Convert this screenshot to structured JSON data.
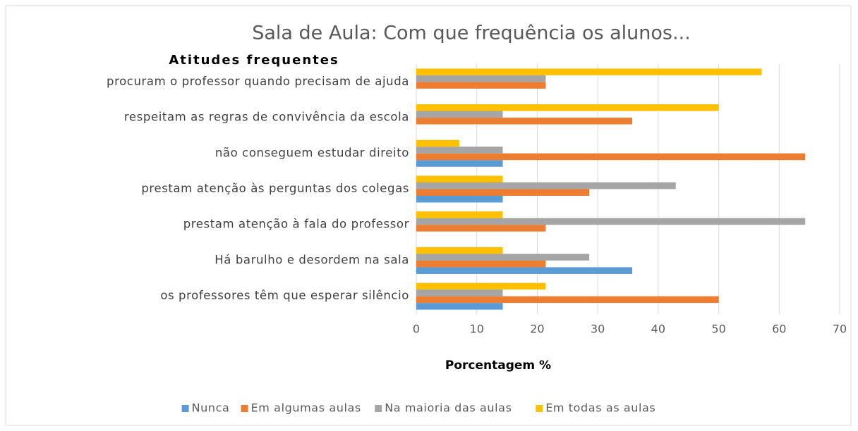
{
  "chart_data": {
    "type": "bar",
    "orientation": "horizontal",
    "title": "Sala de Aula: Com que frequência os alunos...",
    "y_label": "Atitudes frequentes",
    "x_label": "Porcentagem %",
    "categories": [
      "procuram o professor quando precisam de ajuda",
      "respeitam as regras de convivência da escola",
      "não conseguem estudar direito",
      "prestam atenção às perguntas dos colegas",
      "prestam atenção à fala do professor",
      "Há barulho e desordem na sala",
      "os professores têm que esperar silêncio"
    ],
    "series": [
      {
        "name": "Nunca",
        "color": "#5b9bd5",
        "values": [
          0,
          0,
          14.3,
          14.3,
          0,
          35.7,
          14.3
        ]
      },
      {
        "name": "Em algumas aulas",
        "color": "#ed7d31",
        "values": [
          21.4,
          35.7,
          64.3,
          28.6,
          21.4,
          21.4,
          50
        ]
      },
      {
        "name": "Na maioria das aulas",
        "color": "#a5a5a5",
        "values": [
          21.4,
          14.3,
          14.3,
          42.9,
          64.3,
          28.6,
          14.3
        ]
      },
      {
        "name": "Em todas as aulas",
        "color": "#ffc000",
        "values": [
          57.1,
          50,
          7.1,
          14.3,
          14.3,
          14.3,
          21.4
        ]
      }
    ],
    "xlim": [
      0,
      70
    ],
    "xticks": [
      0,
      10,
      20,
      30,
      40,
      50,
      60,
      70
    ],
    "grid": true,
    "legend": "bottom"
  }
}
